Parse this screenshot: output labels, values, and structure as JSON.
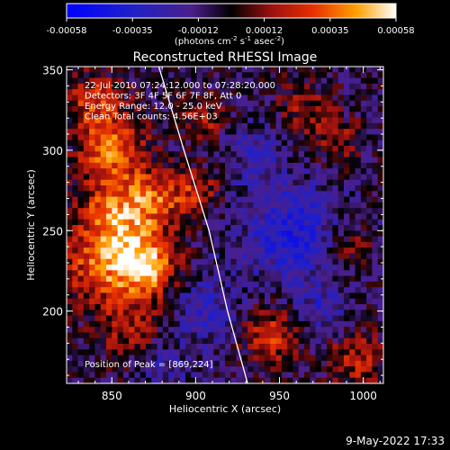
{
  "colorbar": {
    "min_label": "-0.00058",
    "tick_labels": [
      "-0.00058",
      "-0.00035",
      "-0.00012",
      "0.00012",
      "0.00035",
      "0.00058"
    ],
    "units_main": "(photons cm",
    "units_exp1": "-2",
    "units_mid": " s",
    "units_exp2": "-1",
    "units_end": " asec",
    "units_exp3": "-2",
    "units_close": ")"
  },
  "chart_data": {
    "type": "heatmap",
    "title": "Reconstructed RHESSI Image",
    "xlabel": "Heliocentric X (arcsec)",
    "ylabel": "Heliocentric Y (arcsec)",
    "xlim": [
      823,
      1012
    ],
    "ylim": [
      155,
      352
    ],
    "xticks": [
      850,
      900,
      950,
      1000
    ],
    "yticks": [
      200,
      250,
      300,
      350
    ],
    "limb_curve": [
      [
        878,
        352
      ],
      [
        893,
        300
      ],
      [
        908,
        250
      ],
      [
        919,
        200
      ],
      [
        931,
        155
      ]
    ],
    "annotations": [
      "22-Jul-2010 07:24:12.000 to 07:28:20.000",
      "Detectors: 3F 4F 5F 6F 7F 8F, Att 0",
      "Energy Range: 12.0 - 25.0 keV",
      "Clean    Total counts: 4.56E+03"
    ],
    "peak_label": "Position of Peak = [869,224]",
    "peak": [
      869,
      224
    ],
    "color_range": [
      -0.00058,
      0.00058
    ],
    "hotspots": [
      {
        "x": 868,
        "y": 228,
        "amp": 0.0006,
        "r": 14
      },
      {
        "x": 852,
        "y": 258,
        "amp": 0.00045,
        "r": 16
      },
      {
        "x": 850,
        "y": 300,
        "amp": 0.0004,
        "r": 14
      },
      {
        "x": 875,
        "y": 270,
        "amp": 0.0003,
        "r": 12
      },
      {
        "x": 838,
        "y": 225,
        "amp": 0.00028,
        "r": 14
      },
      {
        "x": 860,
        "y": 190,
        "amp": 0.00022,
        "r": 14
      },
      {
        "x": 840,
        "y": 330,
        "amp": 0.0003,
        "r": 12
      },
      {
        "x": 900,
        "y": 275,
        "amp": 0.00025,
        "r": 10
      },
      {
        "x": 905,
        "y": 320,
        "amp": 0.00022,
        "r": 10
      },
      {
        "x": 945,
        "y": 185,
        "amp": 0.0003,
        "r": 12
      },
      {
        "x": 995,
        "y": 170,
        "amp": 0.00025,
        "r": 12
      },
      {
        "x": 990,
        "y": 240,
        "amp": 0.00022,
        "r": 10
      },
      {
        "x": 965,
        "y": 325,
        "amp": 0.00018,
        "r": 12
      },
      {
        "x": 985,
        "y": 305,
        "amp": 0.00018,
        "r": 10
      },
      {
        "x": 958,
        "y": 248,
        "amp": -0.0003,
        "r": 22
      },
      {
        "x": 905,
        "y": 200,
        "amp": -0.0002,
        "r": 16
      },
      {
        "x": 935,
        "y": 300,
        "amp": -0.00015,
        "r": 14
      },
      {
        "x": 880,
        "y": 165,
        "amp": -0.00015,
        "r": 12
      },
      {
        "x": 975,
        "y": 200,
        "amp": -0.00018,
        "r": 12
      }
    ]
  },
  "timestamp": "9-May-2022 17:33"
}
